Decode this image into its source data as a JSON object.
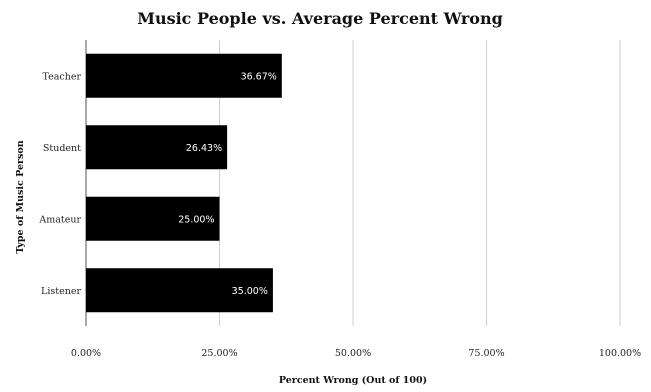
{
  "chart_data": {
    "type": "bar",
    "orientation": "horizontal",
    "title": "Music People vs. Average Percent Wrong",
    "xlabel": "Percent Wrong (Out of 100)",
    "ylabel": "Type of Music Person",
    "categories": [
      "Teacher",
      "Student",
      "Amateur",
      "Listener"
    ],
    "values": [
      36.67,
      26.43,
      25.0,
      35.0
    ],
    "data_labels": [
      "36.67%",
      "26.43%",
      "25.00%",
      "35.00%"
    ],
    "xlim": [
      0,
      100
    ],
    "x_ticks": [
      0,
      25,
      50,
      75,
      100
    ],
    "x_tick_labels": [
      "0.00%",
      "25.00%",
      "50.00%",
      "75.00%",
      "100.00%"
    ],
    "grid": "vertical",
    "legend": "none",
    "bar_color": "#000000",
    "data_label_color": "#ffffff"
  }
}
